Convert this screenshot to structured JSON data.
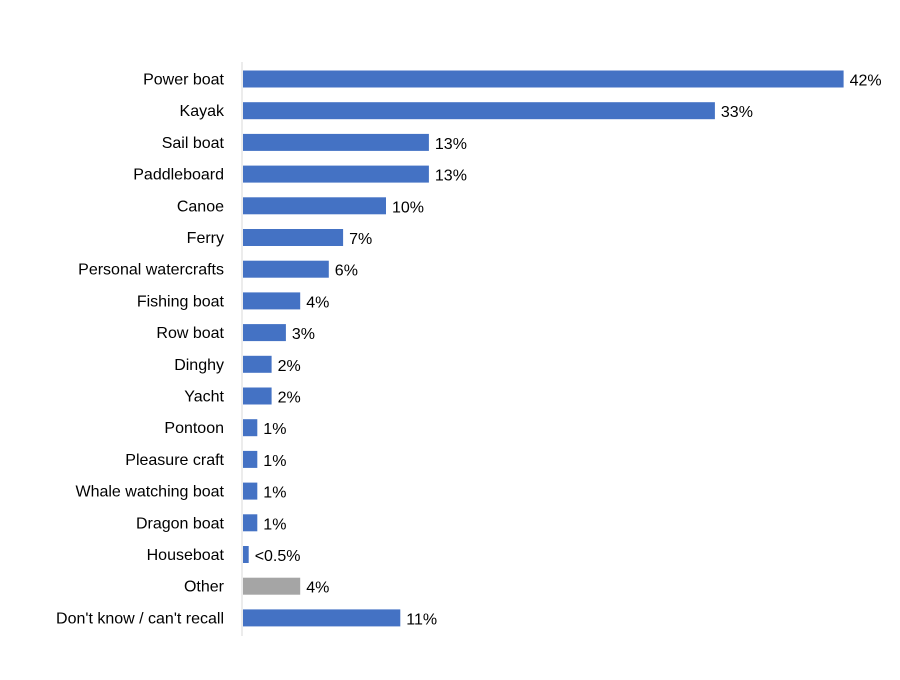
{
  "chart_data": {
    "type": "bar",
    "orientation": "horizontal",
    "categories": [
      "Power boat",
      "Kayak",
      "Sail boat",
      "Paddleboard",
      "Canoe",
      "Ferry",
      "Personal watercrafts",
      "Fishing boat",
      "Row boat",
      "Dinghy",
      "Yacht",
      "Pontoon",
      "Pleasure craft",
      "Whale watching boat",
      "Dragon boat",
      "Houseboat",
      "Other",
      "Don't know / can't recall"
    ],
    "values": [
      42,
      33,
      13,
      13,
      10,
      7,
      6,
      4,
      3,
      2,
      2,
      1,
      1,
      1,
      1,
      0.4,
      4,
      11
    ],
    "value_labels": [
      "42%",
      "33%",
      "13%",
      "13%",
      "10%",
      "7%",
      "6%",
      "4%",
      "3%",
      "2%",
      "2%",
      "1%",
      "1%",
      "1%",
      "1%",
      "<0.5%",
      "4%",
      "11%"
    ],
    "bar_colors": [
      "#4472C4",
      "#4472C4",
      "#4472C4",
      "#4472C4",
      "#4472C4",
      "#4472C4",
      "#4472C4",
      "#4472C4",
      "#4472C4",
      "#4472C4",
      "#4472C4",
      "#4472C4",
      "#4472C4",
      "#4472C4",
      "#4472C4",
      "#4472C4",
      "#A5A5A5",
      "#4472C4"
    ],
    "title": "",
    "xlabel": "",
    "ylabel": "",
    "xlim": [
      0,
      42
    ],
    "grid": false,
    "legend": "none"
  }
}
